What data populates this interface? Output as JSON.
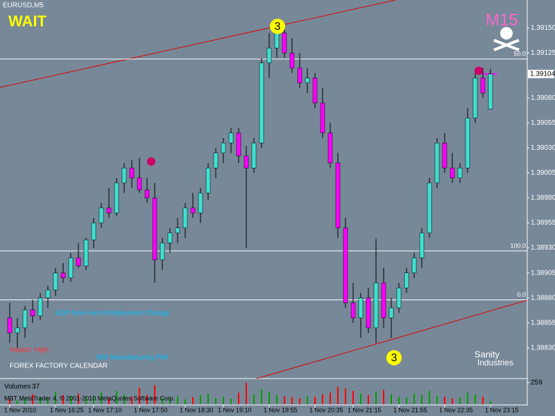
{
  "chart_data": {
    "type": "candlestick",
    "symbol": "EURUSD,M5",
    "signal": "WAIT",
    "timeframe_badge": "M15",
    "brand": [
      "Sanity",
      "Industries"
    ],
    "calendar": [
      "Impact: High",
      "ADP Non-Farm Employment Change",
      "ISM Manufacturing PMI",
      "FOREX FACTORY CALENDAR"
    ],
    "markers": [
      "3",
      "3"
    ],
    "copyright": "MBT MetaTrader 4, © 2001-2010 MetaQuotes Software Corp.",
    "volume_title": "Volumes",
    "up_color": "#40e0d0",
    "down_color": "#ff00ff",
    "volume_up_color": "#00a000",
    "volume_down_color": "#ff0000",
    "categories": [
      "1 Nov 2010",
      null,
      null,
      null,
      null,
      null,
      "1 Nov 16:25",
      null,
      null,
      null,
      null,
      "1 Nov 17:10",
      null,
      null,
      null,
      null,
      null,
      "1 Nov 17:50",
      null,
      null,
      null,
      null,
      null,
      "1 Nov 18:30",
      null,
      null,
      null,
      null,
      "1 Nov 19:10",
      null,
      null,
      null,
      null,
      null,
      "1 Nov 19:55",
      null,
      null,
      null,
      null,
      null,
      "1 Nov 20:35",
      null,
      null,
      null,
      null,
      "1 Nov 21:15",
      null,
      null,
      null,
      null,
      null,
      "1 Nov 21:55",
      null,
      null,
      null,
      null,
      null,
      "1 Nov 22:35",
      null,
      null,
      null,
      null,
      null,
      "1 Nov 23:15"
    ],
    "open": [
      1.3886,
      1.38845,
      1.3885,
      1.38868,
      1.38862,
      1.3888,
      1.38888,
      1.38905,
      1.389,
      1.3892,
      1.38912,
      1.38938,
      1.38955,
      1.3897,
      1.38965,
      1.38995,
      1.3901,
      1.39,
      1.38988,
      1.3898,
      1.38918,
      1.38935,
      1.38945,
      1.3895,
      1.3897,
      1.38965,
      1.38985,
      1.3901,
      1.39025,
      1.39035,
      1.39045,
      1.39022,
      1.3901,
      1.39035,
      1.39115,
      1.3913,
      1.39145,
      1.39125,
      1.3911,
      1.39095,
      1.391,
      1.39075,
      1.39045,
      1.39015,
      1.3895,
      1.38875,
      1.3886,
      1.3888,
      1.3885,
      1.38895,
      1.3886,
      1.3887,
      1.3889,
      1.38905,
      1.3892,
      1.38945,
      1.38995,
      1.39035,
      1.3901,
      1.39,
      1.3901,
      1.3906,
      1.391,
      1.39069
    ],
    "high": [
      1.38875,
      1.3886,
      1.38872,
      1.38878,
      1.38885,
      1.38892,
      1.3891,
      1.38915,
      1.38925,
      1.38935,
      1.3894,
      1.3896,
      1.38975,
      1.3899,
      1.39,
      1.39015,
      1.39018,
      1.3902,
      1.39,
      1.38995,
      1.3894,
      1.3895,
      1.3896,
      1.38975,
      1.38985,
      1.3899,
      1.39015,
      1.3903,
      1.3904,
      1.3905,
      1.3905,
      1.39032,
      1.3904,
      1.3912,
      1.39145,
      1.39152,
      1.3915,
      1.3914,
      1.39125,
      1.3911,
      1.39105,
      1.3909,
      1.39055,
      1.39025,
      1.3896,
      1.38895,
      1.38885,
      1.3889,
      1.38939,
      1.3891,
      1.3888,
      1.38895,
      1.3891,
      1.38925,
      1.3895,
      1.39,
      1.3904,
      1.39045,
      1.39025,
      1.39015,
      1.3907,
      1.39105,
      1.3911,
      1.39109
    ],
    "low": [
      1.38835,
      1.3883,
      1.3884,
      1.38855,
      1.38858,
      1.3887,
      1.38882,
      1.38895,
      1.38896,
      1.3891,
      1.38908,
      1.3893,
      1.3895,
      1.3896,
      1.38962,
      1.38985,
      1.3899,
      1.38985,
      1.38975,
      1.38895,
      1.38908,
      1.38925,
      1.38935,
      1.3894,
      1.3896,
      1.38955,
      1.38978,
      1.39,
      1.39015,
      1.39025,
      1.39015,
      1.3893,
      1.39005,
      1.3903,
      1.391,
      1.3912,
      1.3912,
      1.39105,
      1.3909,
      1.39085,
      1.3907,
      1.3904,
      1.3901,
      1.3894,
      1.3887,
      1.38855,
      1.3884,
      1.38845,
      1.38835,
      1.3885,
      1.3884,
      1.38865,
      1.38885,
      1.389,
      1.3891,
      1.3894,
      1.3899,
      1.39005,
      1.38995,
      1.38995,
      1.39005,
      1.39055,
      1.3908,
      1.39069
    ],
    "close": [
      1.38845,
      1.3885,
      1.38868,
      1.38862,
      1.3888,
      1.38888,
      1.38905,
      1.389,
      1.3892,
      1.38912,
      1.38938,
      1.38955,
      1.3897,
      1.38965,
      1.38995,
      1.3901,
      1.39,
      1.38988,
      1.3898,
      1.38918,
      1.38935,
      1.38945,
      1.3895,
      1.3897,
      1.38965,
      1.38985,
      1.3901,
      1.39025,
      1.39035,
      1.39045,
      1.39022,
      1.3901,
      1.39035,
      1.39115,
      1.3913,
      1.39145,
      1.39125,
      1.3911,
      1.39095,
      1.391,
      1.39075,
      1.39045,
      1.39015,
      1.3895,
      1.38875,
      1.3886,
      1.3888,
      1.3885,
      1.38895,
      1.3886,
      1.3887,
      1.3889,
      1.38905,
      1.3892,
      1.38945,
      1.38995,
      1.39035,
      1.3901,
      1.39,
      1.3901,
      1.3906,
      1.391,
      1.39085,
      1.39104
    ],
    "volume": [
      60,
      45,
      80,
      120,
      90,
      70,
      150,
      110,
      95,
      130,
      85,
      100,
      140,
      75,
      160,
      120,
      90,
      200,
      110,
      230,
      80,
      70,
      95,
      60,
      85,
      110,
      130,
      75,
      90,
      65,
      140,
      259,
      120,
      180,
      150,
      110,
      95,
      85,
      70,
      100,
      90,
      120,
      140,
      210,
      190,
      160,
      130,
      110,
      150,
      170,
      120,
      90,
      80,
      130,
      110,
      160,
      100,
      90,
      70,
      80,
      140,
      120,
      90,
      37
    ],
    "ylim": [
      1.388,
      1.39178
    ],
    "yticks": [
      {
        "value": 1.3915,
        "label": "1.39150"
      },
      {
        "value": 1.39125,
        "label": "1.39125"
      },
      {
        "value": 1.3908,
        "label": "1.39080"
      },
      {
        "value": 1.39055,
        "label": "1.39055"
      },
      {
        "value": 1.3903,
        "label": "1.39030"
      },
      {
        "value": 1.39005,
        "label": "1.39005"
      },
      {
        "value": 1.3898,
        "label": "1.38980"
      },
      {
        "value": 1.38955,
        "label": "1.38955"
      },
      {
        "value": 1.3893,
        "label": "1.38930"
      },
      {
        "value": 1.38905,
        "label": "1.38905"
      },
      {
        "value": 1.3888,
        "label": "1.38880"
      },
      {
        "value": 1.38855,
        "label": "1.38855"
      },
      {
        "value": 1.3883,
        "label": "1.38830"
      }
    ],
    "current_price": 1.39104,
    "levels": [
      {
        "label": "50.0",
        "value": 1.39119
      },
      {
        "label": "100.0",
        "value": 1.38927
      },
      {
        "label": "0.0",
        "value": 1.38878
      }
    ],
    "volume_ylim": [
      0,
      259
    ],
    "volume_yticks": [
      259
    ]
  }
}
